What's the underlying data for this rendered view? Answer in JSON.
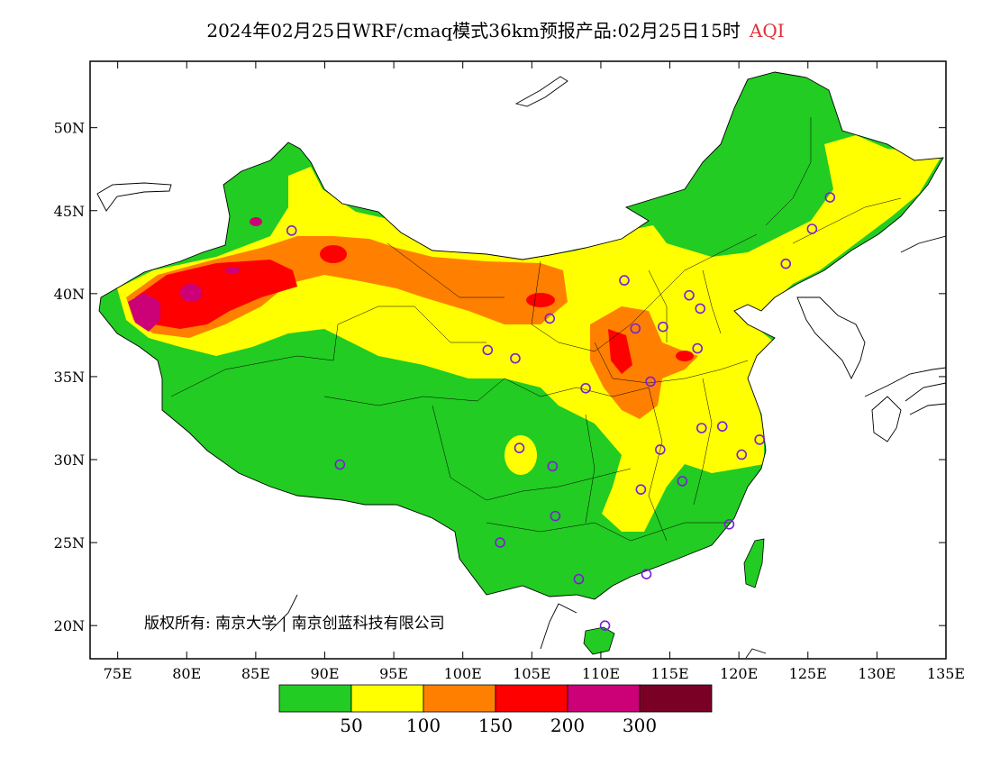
{
  "title": {
    "main": "2024年02月25日WRF/cmaq模式36km预报产品:02月25日15时",
    "variable": "AQI"
  },
  "map": {
    "lon_range": [
      73,
      135
    ],
    "lat_range": [
      18,
      54
    ],
    "lat_ticks": [
      "50N",
      "45N",
      "40N",
      "35N",
      "30N",
      "25N",
      "20N"
    ],
    "lon_ticks": [
      "75E",
      "80E",
      "85E",
      "90E",
      "95E",
      "100E",
      "105E",
      "110E",
      "115E",
      "120E",
      "125E",
      "130E",
      "135E"
    ],
    "copyright": "版权所有: 南京大学 | 南京创蓝科技有限公司"
  },
  "legend": {
    "colors": [
      "#22cc22",
      "#ffff00",
      "#ff8000",
      "#ff0000",
      "#cc0077",
      "#7a0026"
    ],
    "labels": [
      "50",
      "100",
      "150",
      "200",
      "300"
    ]
  },
  "stations": [
    [
      87.6,
      43.8
    ],
    [
      91.1,
      29.7
    ],
    [
      101.8,
      36.6
    ],
    [
      103.8,
      36.1
    ],
    [
      106.3,
      38.5
    ],
    [
      111.7,
      40.8
    ],
    [
      104.1,
      30.7
    ],
    [
      106.5,
      29.6
    ],
    [
      106.7,
      26.6
    ],
    [
      102.7,
      25.0
    ],
    [
      108.4,
      22.8
    ],
    [
      113.3,
      23.1
    ],
    [
      110.3,
      20.0
    ],
    [
      119.3,
      26.1
    ],
    [
      121.5,
      31.2
    ],
    [
      120.2,
      30.3
    ],
    [
      118.8,
      32.0
    ],
    [
      117.3,
      31.9
    ],
    [
      115.9,
      28.7
    ],
    [
      112.9,
      28.2
    ],
    [
      114.3,
      30.6
    ],
    [
      113.6,
      34.7
    ],
    [
      108.9,
      34.3
    ],
    [
      112.5,
      37.9
    ],
    [
      114.5,
      38.0
    ],
    [
      116.4,
      39.9
    ],
    [
      117.2,
      39.1
    ],
    [
      117.0,
      36.7
    ],
    [
      123.4,
      41.8
    ],
    [
      125.3,
      43.9
    ],
    [
      126.6,
      45.8
    ]
  ]
}
